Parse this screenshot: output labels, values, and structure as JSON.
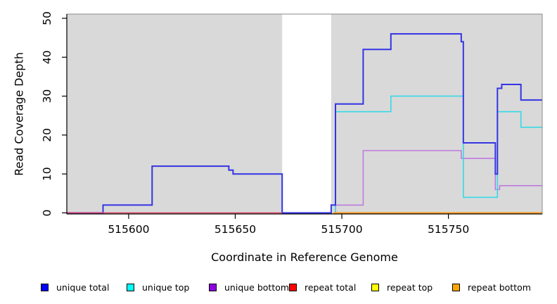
{
  "chart_data": {
    "type": "line",
    "subtype": "step",
    "title": "",
    "xlabel": "Coordinate in Reference Genome",
    "ylabel": "Read Coverage Depth",
    "xlim": [
      515571,
      515794
    ],
    "ylim": [
      0,
      51
    ],
    "xticks": [
      515600,
      515650,
      515700,
      515750
    ],
    "yticks": [
      0,
      10,
      20,
      30,
      40,
      50
    ],
    "grid": "off",
    "panel_bg": "#d9d9d9",
    "masked_region": {
      "x0": 515672,
      "x1": 515695,
      "color": "#ffffff"
    },
    "legend_position": "bottom",
    "series": [
      {
        "name": "unique total",
        "legend_color": "#0000ff",
        "stroke": "#3434e4",
        "width": 2,
        "z": 3,
        "points": [
          [
            515571,
            0
          ],
          [
            515588,
            0
          ],
          [
            515588,
            2
          ],
          [
            515611,
            2
          ],
          [
            515611,
            12
          ],
          [
            515647,
            12
          ],
          [
            515647,
            11
          ],
          [
            515649,
            11
          ],
          [
            515649,
            10
          ],
          [
            515672,
            10
          ],
          [
            515672,
            0
          ],
          [
            515695,
            0
          ],
          [
            515695,
            2
          ],
          [
            515697,
            2
          ],
          [
            515697,
            28
          ],
          [
            515710,
            28
          ],
          [
            515710,
            42
          ],
          [
            515723,
            42
          ],
          [
            515723,
            46
          ],
          [
            515756,
            46
          ],
          [
            515756,
            44
          ],
          [
            515757,
            44
          ],
          [
            515757,
            18
          ],
          [
            515772,
            18
          ],
          [
            515772,
            10
          ],
          [
            515773,
            10
          ],
          [
            515773,
            32
          ],
          [
            515775,
            32
          ],
          [
            515775,
            33
          ],
          [
            515784,
            33
          ],
          [
            515784,
            29
          ],
          [
            515794,
            29
          ]
        ]
      },
      {
        "name": "unique top",
        "legend_color": "#00ffff",
        "stroke": "#36d9e6",
        "width": 1.6,
        "z": 2,
        "points": [
          [
            515697,
            0
          ],
          [
            515697,
            26
          ],
          [
            515723,
            26
          ],
          [
            515723,
            30
          ],
          [
            515757,
            30
          ],
          [
            515757,
            4
          ],
          [
            515773,
            4
          ],
          [
            515773,
            26
          ],
          [
            515784,
            26
          ],
          [
            515784,
            22
          ],
          [
            515794,
            22
          ]
        ]
      },
      {
        "name": "unique bottom",
        "legend_color": "#9000e0",
        "stroke": "#be7be0",
        "width": 1.6,
        "z": 1,
        "points": [
          [
            515697,
            0
          ],
          [
            515697,
            2
          ],
          [
            515710,
            2
          ],
          [
            515710,
            16
          ],
          [
            515756,
            16
          ],
          [
            515756,
            14
          ],
          [
            515772,
            14
          ],
          [
            515772,
            6
          ],
          [
            515774,
            6
          ],
          [
            515774,
            7
          ],
          [
            515794,
            7
          ]
        ]
      },
      {
        "name": "repeat total",
        "legend_color": "#ff0000",
        "stroke": "#e04766",
        "width": 1.6,
        "z": 4,
        "points": [
          [
            515571,
            0
          ],
          [
            515672,
            0
          ]
        ]
      },
      {
        "name": "repeat top",
        "legend_color": "#ffff00",
        "stroke": "#ffff00",
        "width": 1.6,
        "z": 5,
        "points": [
          [
            515696,
            0
          ],
          [
            515794,
            0
          ]
        ]
      },
      {
        "name": "repeat bottom",
        "legend_color": "#ffa500",
        "stroke": "#ff9d20",
        "width": 2,
        "z": 6,
        "points": [
          [
            515696,
            0
          ],
          [
            515794,
            0
          ]
        ]
      }
    ]
  }
}
